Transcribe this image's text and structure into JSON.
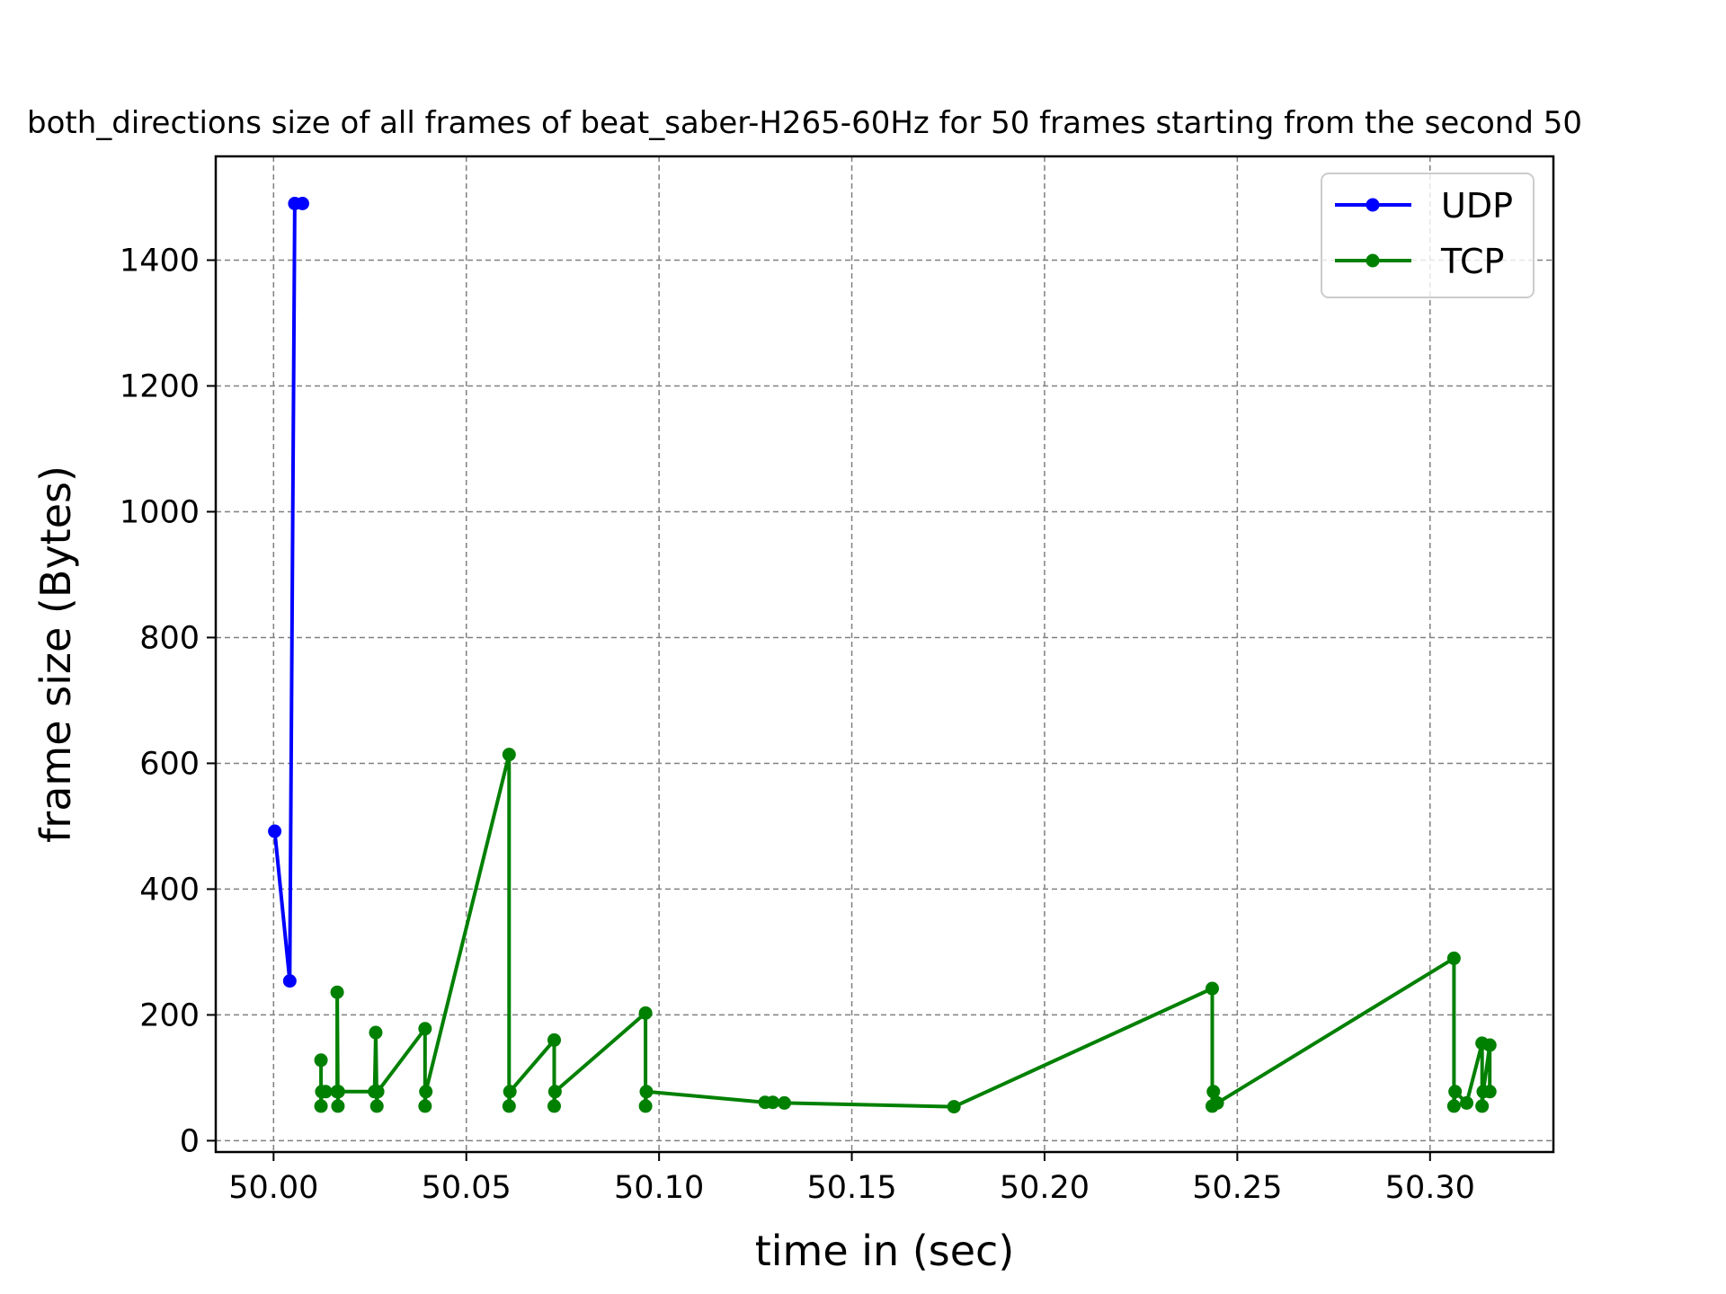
{
  "chart_data": {
    "type": "line",
    "title": "both_directions size of all frames of beat_saber-H265-60Hz for 50 frames starting from the second 50",
    "xlabel": "time in (sec)",
    "ylabel": "frame size (Bytes)",
    "xlim": [
      49.985,
      50.332
    ],
    "ylim": [
      -18,
      1565
    ],
    "xticks": [
      50.0,
      50.05,
      50.1,
      50.15,
      50.2,
      50.25,
      50.3
    ],
    "xtick_labels": [
      "50.00",
      "50.05",
      "50.10",
      "50.15",
      "50.20",
      "50.25",
      "50.30"
    ],
    "yticks": [
      0,
      200,
      400,
      600,
      800,
      1000,
      1200,
      1400
    ],
    "ytick_labels": [
      "0",
      "200",
      "400",
      "600",
      "800",
      "1000",
      "1200",
      "1400"
    ],
    "grid": true,
    "legend_position": "top-right",
    "series": [
      {
        "name": "UDP",
        "color": "#0000ff",
        "x": [
          50.0003,
          50.0042,
          50.0055,
          50.0075
        ],
        "y": [
          492,
          254,
          1490,
          1490
        ]
      },
      {
        "name": "TCP",
        "color": "#008000",
        "x": [
          50.0123,
          50.0123,
          50.0125,
          50.0135,
          50.0165,
          50.0165,
          50.0167,
          50.0168,
          50.0262,
          50.0265,
          50.0268,
          50.027,
          50.0393,
          50.0393,
          50.0395,
          50.0611,
          50.0611,
          50.0613,
          50.0728,
          50.0728,
          50.073,
          50.0965,
          50.0965,
          50.0967,
          50.1275,
          50.1295,
          50.1325,
          50.1765,
          50.2435,
          50.2435,
          50.2438,
          50.2448,
          50.3062,
          50.3062,
          50.3065,
          50.3095,
          50.3135,
          50.3135,
          50.3138,
          50.3155,
          50.3155
        ],
        "y": [
          128,
          55,
          78,
          78,
          78,
          236,
          55,
          78,
          78,
          172,
          55,
          78,
          178,
          55,
          78,
          614,
          55,
          78,
          160,
          55,
          78,
          203,
          55,
          78,
          61,
          61,
          60,
          54,
          242,
          55,
          78,
          60,
          290,
          55,
          78,
          60,
          155,
          55,
          78,
          152,
          78
        ]
      }
    ]
  }
}
